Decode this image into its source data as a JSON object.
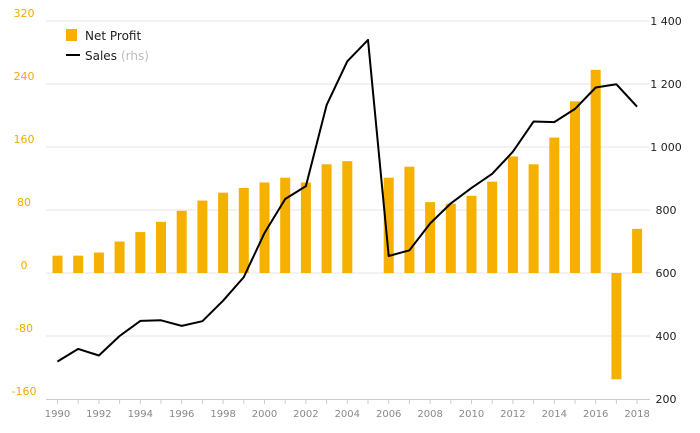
{
  "chart_data": {
    "type": "bar",
    "x": [
      1990,
      1991,
      1992,
      1993,
      1994,
      1995,
      1996,
      1997,
      1998,
      1999,
      2000,
      2001,
      2002,
      2003,
      2004,
      2005,
      2006,
      2007,
      2008,
      2009,
      2010,
      2011,
      2012,
      2013,
      2014,
      2015,
      2016,
      2017,
      2018
    ],
    "series": [
      {
        "name": "Net Profit",
        "type": "bar",
        "axis": "left",
        "color": "#f5b000",
        "values": [
          22,
          22,
          26,
          40,
          52,
          65,
          79,
          92,
          102,
          108,
          115,
          121,
          115,
          138,
          142,
          null,
          121,
          135,
          90,
          88,
          98,
          116,
          148,
          138,
          172,
          218,
          258,
          -135,
          56
        ]
      },
      {
        "name": "Sales",
        "type": "line",
        "axis": "right",
        "color": "#000000",
        "values": [
          319,
          359,
          338,
          400,
          448,
          450,
          432,
          447,
          512,
          587,
          727,
          835,
          876,
          1133,
          1272,
          1340,
          654,
          672,
          757,
          821,
          870,
          915,
          985,
          1081,
          1079,
          1121,
          1189,
          1199,
          1128
        ]
      }
    ],
    "left_axis": {
      "ylim": [
        -160,
        320
      ],
      "ticks": [
        "320",
        "240",
        "160",
        "80",
        "0",
        "-80",
        "-160"
      ]
    },
    "right_axis": {
      "ylim": [
        200,
        1400
      ],
      "ticks": [
        "1 400",
        "1 200",
        "1 000",
        "800",
        "600",
        "400",
        "200"
      ]
    },
    "x_ticks": [
      "1990",
      "1992",
      "1994",
      "1996",
      "1998",
      "2000",
      "2002",
      "2004",
      "2006",
      "2008",
      "2010",
      "2012",
      "2014",
      "2016",
      "2018"
    ],
    "legend": {
      "position": "top-left",
      "items": [
        {
          "label": "Net Profit",
          "note": "",
          "color": "#f5b000",
          "shape": "square"
        },
        {
          "label": "Sales",
          "note": "(rhs)",
          "color": "#000000",
          "shape": "line"
        }
      ]
    },
    "grid": true
  }
}
